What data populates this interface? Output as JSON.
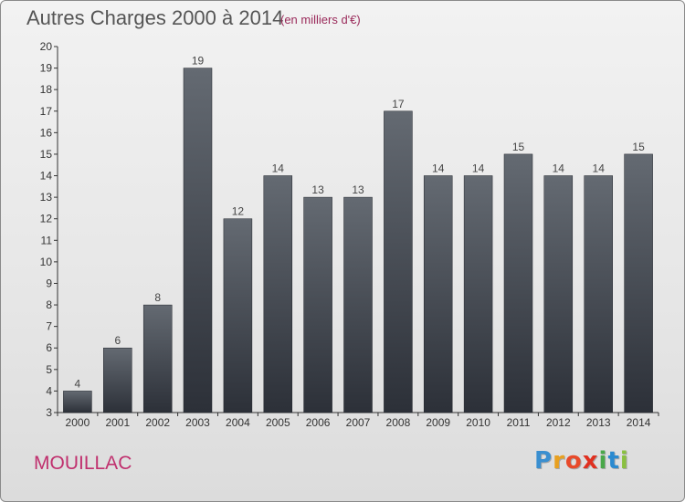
{
  "header": {
    "title": "Autres Charges 2000 à 2014",
    "unit_note": "(en milliers d'€)"
  },
  "footer": {
    "commune": "MOUILLAC",
    "logo": {
      "letters": [
        "P",
        "r",
        "o",
        "x",
        "i",
        "t",
        "i"
      ],
      "colors": [
        "#3a8fd0",
        "#e8a020",
        "#e84a2a",
        "#e03020",
        "#4aa84a",
        "#2a8ad0",
        "#8ac040"
      ]
    }
  },
  "colors": {
    "bar_top": "#646a72",
    "bar_bottom": "#2c3038",
    "title": "#555555",
    "commune": "#c0306e"
  },
  "chart_data": {
    "type": "bar",
    "categories": [
      "2000",
      "2001",
      "2002",
      "2003",
      "2004",
      "2005",
      "2006",
      "2007",
      "2008",
      "2009",
      "2010",
      "2011",
      "2012",
      "2013",
      "2014"
    ],
    "values": [
      4,
      6,
      8,
      19,
      12,
      14,
      13,
      13,
      17,
      14,
      14,
      15,
      14,
      14,
      15
    ],
    "title": "Autres Charges 2000 à 2014",
    "xlabel": "",
    "ylabel": "",
    "ylim": [
      3,
      20
    ],
    "yticks": [
      3,
      4,
      5,
      6,
      7,
      8,
      9,
      10,
      11,
      12,
      13,
      14,
      15,
      16,
      17,
      18,
      19,
      20
    ],
    "grid": false,
    "legend": "none"
  }
}
